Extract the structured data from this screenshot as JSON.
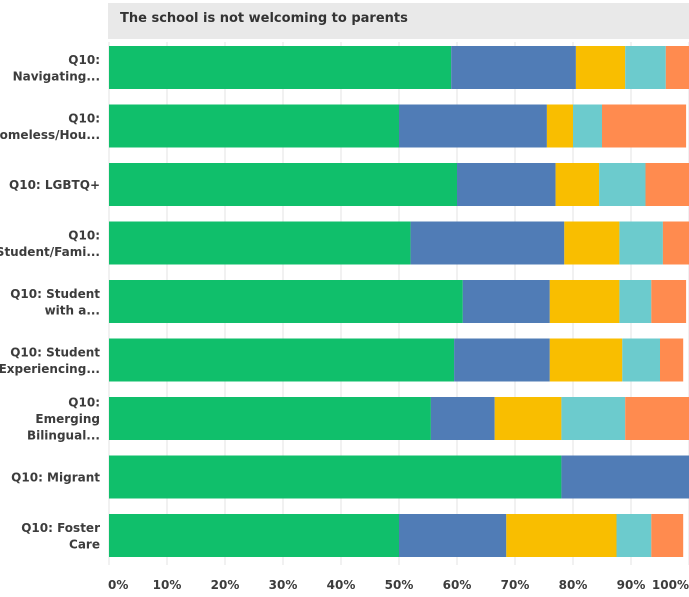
{
  "chart_data": {
    "type": "bar",
    "orientation": "horizontal",
    "stacked": true,
    "title": "The school is not welcoming to parents",
    "categories": [
      [
        "Q10:",
        "Navigating..."
      ],
      [
        "Q10:",
        "Homeless/Hou..."
      ],
      [
        "Q10: LGBTQ+"
      ],
      [
        "Q10:",
        "Student/Fami..."
      ],
      [
        "Q10: Student",
        "with a..."
      ],
      [
        "Q10: Student",
        "Experiencing..."
      ],
      [
        "Q10:",
        "Emerging",
        "Bilingual..."
      ],
      [
        "Q10: Migrant"
      ],
      [
        "Q10: Foster",
        "Care"
      ]
    ],
    "series": [
      {
        "color": "#10bf6b",
        "values": [
          59,
          50,
          60,
          52,
          61,
          59.5,
          55.5,
          78,
          50
        ]
      },
      {
        "color": "#507cb6",
        "values": [
          21.5,
          25.5,
          17,
          26.5,
          15,
          16.5,
          11,
          22,
          18.5
        ]
      },
      {
        "color": "#f9be00",
        "values": [
          8.5,
          4.5,
          7.5,
          9.5,
          12,
          12.5,
          11.5,
          0,
          19
        ]
      },
      {
        "color": "#6ccbcd",
        "values": [
          7,
          5,
          8,
          7.5,
          5.5,
          6.5,
          11,
          0,
          6
        ]
      },
      {
        "color": "#ff8b4f",
        "values": [
          4,
          14.5,
          7.5,
          4.5,
          6,
          4,
          11,
          0,
          5.5
        ]
      }
    ],
    "xlim": [
      0,
      100
    ],
    "xticks": [
      "0%",
      "10%",
      "20%",
      "30%",
      "40%",
      "50%",
      "60%",
      "70%",
      "80%",
      "90%",
      "100%"
    ],
    "grid": true
  }
}
